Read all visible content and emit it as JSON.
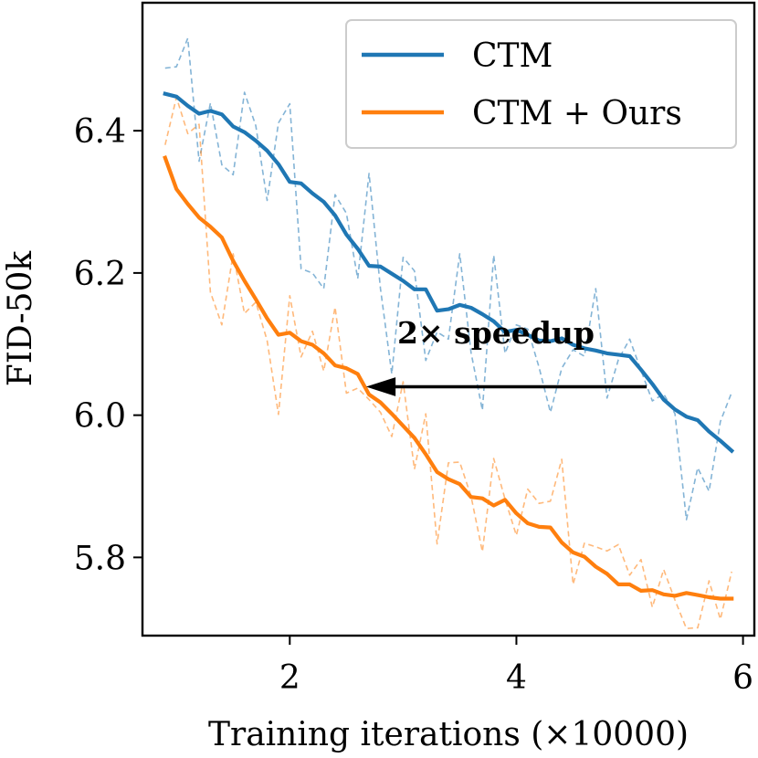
{
  "chart_data": {
    "type": "line",
    "title": "",
    "xlabel": "Training iterations (×10000)",
    "ylabel": "FID-50k",
    "xlim": [
      0.7,
      6.1
    ],
    "ylim": [
      5.69,
      6.58
    ],
    "xticks": [
      2,
      4,
      6
    ],
    "xtick_labels": [
      "2",
      "4",
      "6"
    ],
    "yticks": [
      5.8,
      6.0,
      6.2,
      6.4
    ],
    "ytick_labels": [
      "5.8",
      "6.0",
      "6.2",
      "6.4"
    ],
    "grid": false,
    "legend_position": "top-right",
    "series": [
      {
        "name": "CTM",
        "color": "#1f77b4",
        "style": "solid",
        "legend": true,
        "x": [
          0.9,
          1.0,
          1.1,
          1.2,
          1.3,
          1.4,
          1.5,
          1.6,
          1.7,
          1.8,
          1.9,
          2.0,
          2.1,
          2.2,
          2.3,
          2.4,
          2.5,
          2.6,
          2.7,
          2.8,
          2.9,
          3.0,
          3.1,
          3.2,
          3.3,
          3.4,
          3.5,
          3.6,
          3.7,
          3.8,
          3.9,
          4.0,
          4.1,
          4.2,
          4.3,
          4.4,
          4.5,
          4.6,
          4.7,
          4.8,
          4.9,
          5.0,
          5.1,
          5.2,
          5.3,
          5.4,
          5.5,
          5.6,
          5.7,
          5.8,
          5.9
        ],
        "y": [
          6.452,
          6.448,
          6.435,
          6.424,
          6.428,
          6.423,
          6.406,
          6.398,
          6.386,
          6.372,
          6.353,
          6.328,
          6.326,
          6.312,
          6.3,
          6.281,
          6.254,
          6.234,
          6.21,
          6.209,
          6.199,
          6.189,
          6.177,
          6.177,
          6.147,
          6.149,
          6.155,
          6.151,
          6.142,
          6.132,
          6.117,
          6.12,
          6.113,
          6.105,
          6.104,
          6.108,
          6.099,
          6.094,
          6.091,
          6.087,
          6.085,
          6.083,
          6.064,
          6.044,
          6.022,
          6.008,
          5.998,
          5.993,
          5.977,
          5.964,
          5.95
        ]
      },
      {
        "name": "CTM + Ours",
        "color": "#ff7f0e",
        "style": "solid",
        "legend": true,
        "x": [
          0.9,
          1.0,
          1.1,
          1.2,
          1.3,
          1.4,
          1.5,
          1.6,
          1.7,
          1.8,
          1.9,
          2.0,
          2.1,
          2.2,
          2.3,
          2.4,
          2.5,
          2.6,
          2.7,
          2.8,
          2.9,
          3.0,
          3.1,
          3.2,
          3.3,
          3.4,
          3.5,
          3.6,
          3.7,
          3.8,
          3.9,
          4.0,
          4.1,
          4.2,
          4.3,
          4.4,
          4.5,
          4.6,
          4.7,
          4.8,
          4.9,
          5.0,
          5.1,
          5.2,
          5.3,
          5.4,
          5.5,
          5.6,
          5.7,
          5.8,
          5.9
        ],
        "y": [
          6.362,
          6.318,
          6.297,
          6.278,
          6.265,
          6.25,
          6.217,
          6.189,
          6.163,
          6.136,
          6.113,
          6.116,
          6.104,
          6.099,
          6.087,
          6.07,
          6.066,
          6.058,
          6.029,
          6.018,
          6.002,
          5.985,
          5.968,
          5.945,
          5.92,
          5.91,
          5.903,
          5.885,
          5.883,
          5.873,
          5.881,
          5.862,
          5.848,
          5.843,
          5.842,
          5.821,
          5.807,
          5.801,
          5.787,
          5.777,
          5.762,
          5.762,
          5.753,
          5.754,
          5.748,
          5.746,
          5.75,
          5.747,
          5.744,
          5.742,
          5.742
        ]
      },
      {
        "name": "CTM (raw)",
        "color": "#1f77b4",
        "style": "dashed",
        "legend": false,
        "x": [
          0.9,
          1.0,
          1.1,
          1.2,
          1.3,
          1.4,
          1.5,
          1.6,
          1.7,
          1.8,
          1.9,
          2.0,
          2.1,
          2.2,
          2.3,
          2.4,
          2.5,
          2.6,
          2.7,
          2.8,
          2.9,
          3.0,
          3.1,
          3.2,
          3.3,
          3.4,
          3.5,
          3.6,
          3.7,
          3.8,
          3.9,
          4.0,
          4.1,
          4.2,
          4.3,
          4.4,
          4.5,
          4.6,
          4.7,
          4.8,
          4.9,
          5.0,
          5.1,
          5.2,
          5.3,
          5.4,
          5.5,
          5.6,
          5.7,
          5.8,
          5.9
        ],
        "y": [
          6.488,
          6.49,
          6.53,
          6.357,
          6.439,
          6.352,
          6.338,
          6.454,
          6.407,
          6.302,
          6.411,
          6.438,
          6.206,
          6.2,
          6.178,
          6.31,
          6.284,
          6.192,
          6.34,
          6.178,
          6.058,
          6.222,
          6.203,
          6.077,
          6.117,
          6.107,
          6.227,
          6.088,
          6.007,
          6.225,
          6.087,
          6.127,
          6.121,
          6.067,
          6.004,
          6.066,
          6.092,
          6.083,
          6.178,
          6.024,
          6.078,
          6.107,
          6.063,
          6.02,
          6.03,
          6.002,
          5.853,
          5.926,
          5.893,
          5.991,
          6.032
        ]
      },
      {
        "name": "CTM + Ours (raw)",
        "color": "#ff7f0e",
        "style": "dashed",
        "legend": false,
        "x": [
          0.9,
          1.0,
          1.1,
          1.2,
          1.3,
          1.4,
          1.5,
          1.6,
          1.7,
          1.8,
          1.9,
          2.0,
          2.1,
          2.2,
          2.3,
          2.4,
          2.5,
          2.6,
          2.7,
          2.8,
          2.9,
          3.0,
          3.1,
          3.2,
          3.3,
          3.4,
          3.5,
          3.6,
          3.7,
          3.8,
          3.9,
          4.0,
          4.1,
          4.2,
          4.3,
          4.4,
          4.5,
          4.6,
          4.7,
          4.8,
          4.9,
          5.0,
          5.1,
          5.2,
          5.3,
          5.4,
          5.5,
          5.6,
          5.7,
          5.8,
          5.9
        ],
        "y": [
          6.38,
          6.447,
          6.396,
          6.409,
          6.173,
          6.127,
          6.227,
          6.143,
          6.159,
          6.105,
          6.001,
          6.168,
          6.082,
          6.118,
          6.062,
          6.152,
          6.031,
          6.038,
          6.022,
          6.004,
          5.97,
          6.047,
          5.924,
          6.002,
          5.819,
          5.933,
          5.934,
          5.886,
          5.808,
          5.939,
          5.882,
          5.831,
          5.896,
          5.876,
          5.879,
          5.938,
          5.762,
          5.82,
          5.815,
          5.809,
          5.818,
          5.775,
          5.797,
          5.73,
          5.783,
          5.74,
          5.7,
          5.701,
          5.767,
          5.713,
          5.78
        ]
      }
    ],
    "annotation": {
      "text": "2× speedup",
      "arrow_from": [
        5.15,
        6.04
      ],
      "arrow_to": [
        2.7,
        6.04
      ]
    }
  }
}
